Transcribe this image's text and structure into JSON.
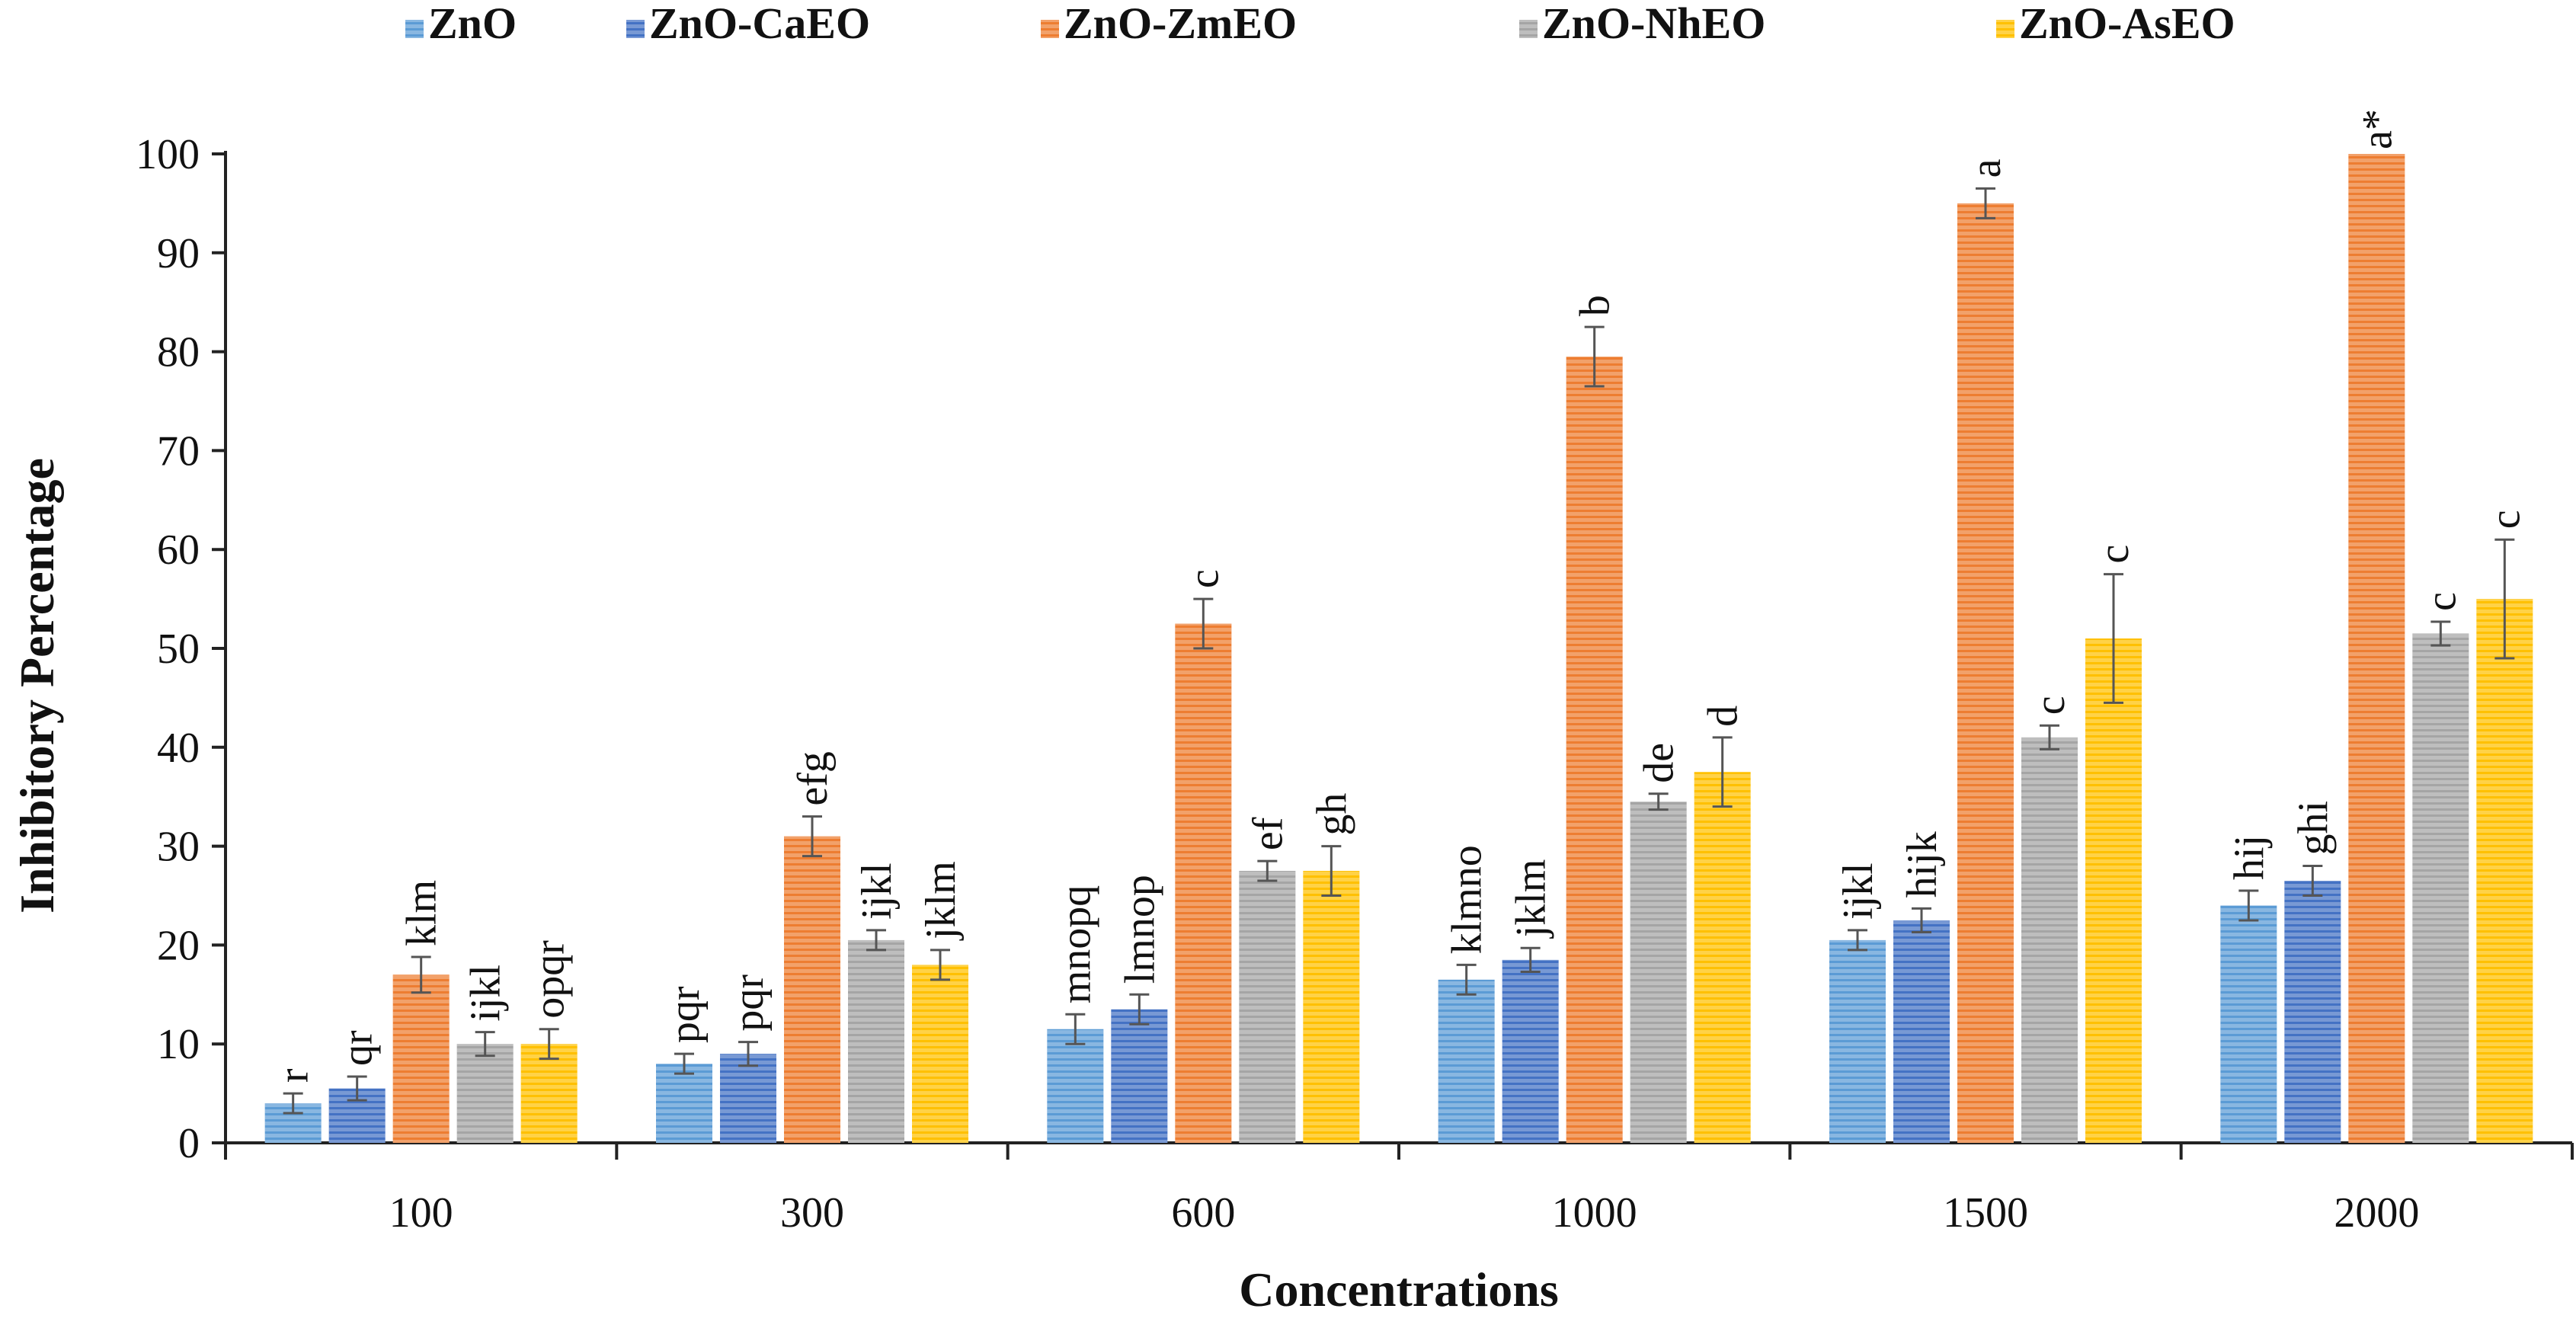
{
  "chart_data": {
    "type": "bar",
    "title": "",
    "xlabel": "Concentrations",
    "ylabel": "Inhibitory  Percentage",
    "ylim": [
      0,
      100
    ],
    "yticks": [
      "0",
      "10",
      "20",
      "30",
      "40",
      "50",
      "60",
      "70",
      "80",
      "90",
      "100"
    ],
    "categories": [
      "100",
      "300",
      "600",
      "1000",
      "1500",
      "2000"
    ],
    "legend_position": "top",
    "series": [
      {
        "name": "ZnO",
        "color": "#5b9bd5",
        "values": [
          4,
          8,
          11.5,
          16.5,
          20.5,
          24
        ],
        "errors": [
          1,
          1,
          1.5,
          1.5,
          1,
          1.5
        ],
        "labels": [
          "r",
          "pqr",
          "mnopq",
          "klmno",
          "ijkl",
          "hij"
        ]
      },
      {
        "name": "ZnO-CaEO",
        "color": "#4472c4",
        "values": [
          5.5,
          9,
          13.5,
          18.5,
          22.5,
          26.5
        ],
        "errors": [
          1.2,
          1.2,
          1.5,
          1.2,
          1.2,
          1.5
        ],
        "labels": [
          "qr",
          "pqr",
          "lmnop",
          "jklm",
          "hijk",
          "ghi"
        ]
      },
      {
        "name": "ZnO-ZmEO",
        "color": "#ed7d31",
        "values": [
          17,
          31,
          52.5,
          79.5,
          95,
          100
        ],
        "errors": [
          1.8,
          2,
          2.5,
          3,
          1.5,
          0
        ],
        "labels": [
          "klm",
          "efg",
          "c",
          "b",
          "a",
          "a*"
        ]
      },
      {
        "name": "ZnO-NhEO",
        "color": "#a5a5a5",
        "values": [
          10,
          20.5,
          27.5,
          34.5,
          41,
          51.5
        ],
        "errors": [
          1.2,
          1,
          1,
          0.8,
          1.2,
          1.2
        ],
        "labels": [
          "ijkl",
          "ijkl",
          "ef",
          "de",
          "c",
          "c"
        ]
      },
      {
        "name": "ZnO-AsEO",
        "color": "#ffc000",
        "values": [
          10,
          18,
          27.5,
          37.5,
          51,
          55
        ],
        "errors": [
          1.5,
          1.5,
          2.5,
          3.5,
          6.5,
          6
        ],
        "labels": [
          "opqr",
          "jklm",
          "gh",
          "d",
          "c",
          "c"
        ]
      }
    ]
  }
}
